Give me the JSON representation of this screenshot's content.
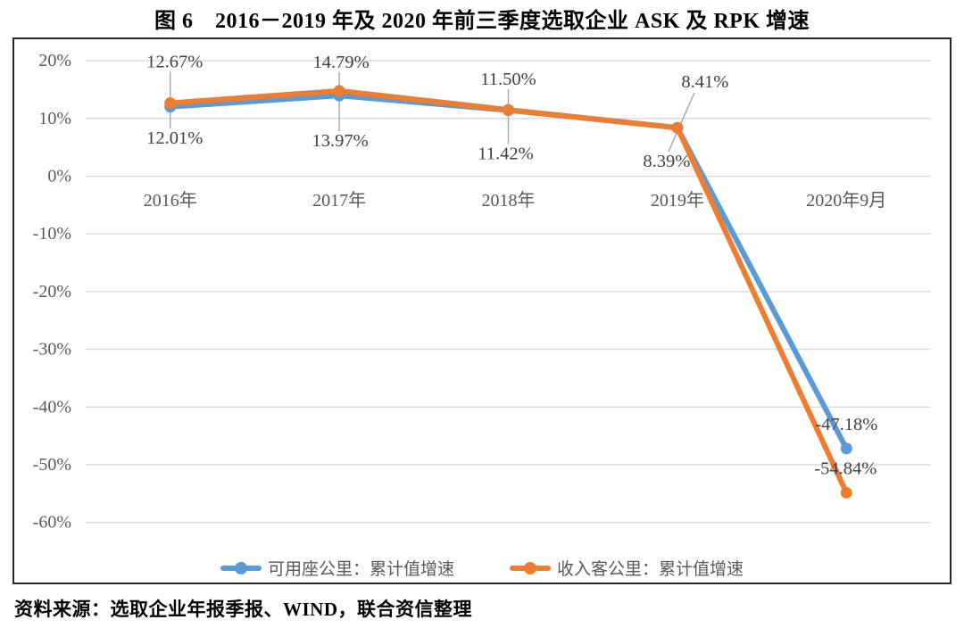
{
  "figure": {
    "title": "图 6　2016－2019 年及 2020 年前三季度选取企业 ASK 及 RPK 增速",
    "source": "资料来源：选取企业年报季报、WIND，联合资信整理"
  },
  "colors": {
    "ask_blue": "#5B9BD5",
    "rpk_orange": "#ED7D31",
    "gridline": "#D9D9D9",
    "axis_text": "#595959",
    "data_label_text": "#404040",
    "leader_line": "#A6A6A6",
    "frame_border": "#262626"
  },
  "chart_data": {
    "type": "line",
    "title": "图 6　2016－2019 年及 2020 年前三季度选取企业 ASK 及 RPK 增速",
    "categories": [
      "2016年",
      "2017年",
      "2018年",
      "2019年",
      "2020年9月"
    ],
    "series": [
      {
        "name": "可用座公里：累计值增速",
        "color": "#5B9BD5",
        "values": [
          12.01,
          13.97,
          11.42,
          8.39,
          -47.18
        ],
        "data_labels": [
          "12.01%",
          "13.97%",
          "11.42%",
          "8.39%",
          "-47.18%"
        ],
        "label_offsets": [
          [
            5,
            35
          ],
          [
            1,
            51
          ],
          [
            -3,
            49
          ],
          [
            -12,
            38
          ],
          [
            0,
            -27
          ]
        ]
      },
      {
        "name": "收入客公里：累计值增速",
        "color": "#ED7D31",
        "values": [
          12.67,
          14.79,
          11.5,
          8.41,
          -54.84
        ],
        "data_labels": [
          "12.67%",
          "14.79%",
          "11.50%",
          "8.41%",
          "-54.84%"
        ],
        "label_offsets": [
          [
            5,
            -46
          ],
          [
            2,
            -32
          ],
          [
            0,
            -34
          ],
          [
            31,
            -51
          ],
          [
            -1,
            -27
          ]
        ]
      }
    ],
    "y_axis": {
      "tick_labels": [
        "20%",
        "10%",
        "0%",
        "-10%",
        "-20%",
        "-30%",
        "-40%",
        "-50%",
        "-60%"
      ],
      "tick_values": [
        20,
        10,
        0,
        -10,
        -20,
        -30,
        -40,
        -50,
        -60
      ],
      "max": 20,
      "min": -60,
      "unit": "%"
    },
    "grid": true,
    "legend_position": "bottom",
    "marker": "circle"
  }
}
